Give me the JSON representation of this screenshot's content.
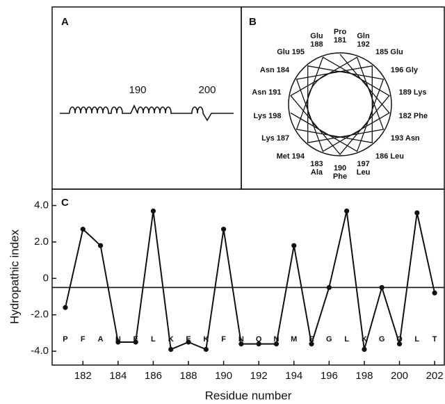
{
  "panel_a": {
    "label": "A",
    "markers": [
      190,
      200
    ]
  },
  "panel_b": {
    "label": "B",
    "residues": [
      {
        "name": "Pro",
        "number": 181
      },
      {
        "name": "Phe",
        "number": 182
      },
      {
        "name": "Ala",
        "number": 183
      },
      {
        "name": "Asn",
        "number": 184
      },
      {
        "name": "Glu",
        "number": 185
      },
      {
        "name": "Leu",
        "number": 186
      },
      {
        "name": "Lys",
        "number": 187
      },
      {
        "name": "Glu",
        "number": 188
      },
      {
        "name": "Lys",
        "number": 189
      },
      {
        "name": "Phe",
        "number": 190
      },
      {
        "name": "Asn",
        "number": 191
      },
      {
        "name": "Gln",
        "number": 192
      },
      {
        "name": "Asn",
        "number": 193
      },
      {
        "name": "Met",
        "number": 194
      },
      {
        "name": "Glu",
        "number": 195
      },
      {
        "name": "Gly",
        "number": 196
      },
      {
        "name": "Leu",
        "number": 197
      },
      {
        "name": "Lys",
        "number": 198
      }
    ]
  },
  "chart_data": {
    "type": "line",
    "panel_label": "C",
    "x_label": "Residue number",
    "y_label": "Hydropathic index",
    "x": [
      181,
      182,
      183,
      184,
      185,
      186,
      187,
      188,
      189,
      190,
      191,
      192,
      193,
      194,
      195,
      196,
      197,
      198,
      199,
      200,
      201,
      202
    ],
    "residues": [
      "P",
      "F",
      "A",
      "N",
      "E",
      "L",
      "K",
      "E",
      "K",
      "F",
      "N",
      "Q",
      "N",
      "M",
      "E",
      "G",
      "L",
      "K",
      "G",
      "Q",
      "L",
      "T"
    ],
    "values": [
      -1.6,
      2.7,
      1.8,
      -3.5,
      -3.5,
      3.7,
      -3.9,
      -3.5,
      -3.9,
      2.7,
      -3.6,
      -3.6,
      -3.6,
      1.8,
      -3.6,
      -0.5,
      3.7,
      -3.9,
      -0.5,
      -3.6,
      3.6,
      -0.8
    ],
    "color": "#111111",
    "reference_line": -0.5,
    "xlim": [
      180.25,
      202.55
    ],
    "xticks": [
      182,
      184,
      186,
      188,
      190,
      192,
      194,
      196,
      198,
      200,
      202
    ],
    "ylim": [
      -4.76,
      4.9
    ],
    "yticks": [
      {
        "value": 4,
        "label": "4.0"
      },
      {
        "value": 2,
        "label": "2.0"
      },
      0,
      {
        "value": -2,
        "label": "-2.0"
      },
      {
        "value": -4,
        "label": "-4.0"
      }
    ]
  }
}
